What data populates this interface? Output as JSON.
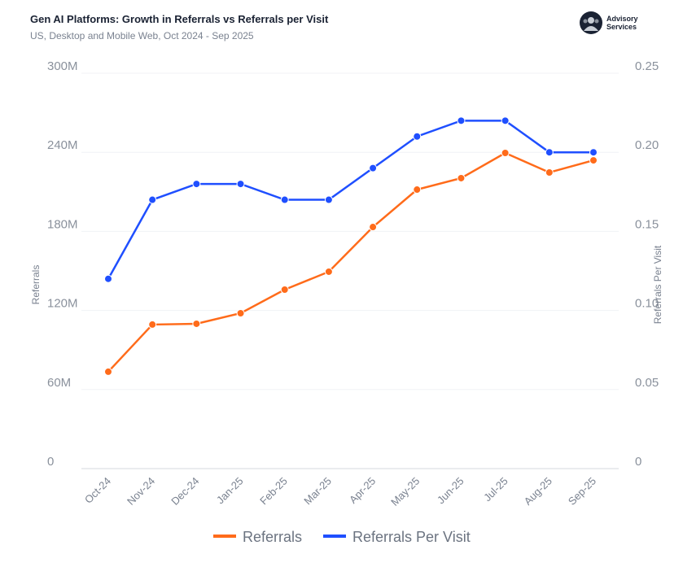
{
  "header": {
    "title": "Gen AI Platforms: Growth in Referrals vs Referrals per Visit",
    "subtitle": "US, Desktop and Mobile Web, Oct 2024 - Sep 2025",
    "logo_text": "Advisory Services"
  },
  "chart_data": {
    "type": "line",
    "title": "Gen AI Platforms: Growth in Referrals vs Referrals per Visit",
    "subtitle": "US, Desktop and Mobile Web, Oct 2024 - Sep 2025",
    "categories": [
      "Oct-24",
      "Nov-24",
      "Dec-24",
      "Jan-25",
      "Feb-25",
      "Mar-25",
      "Apr-25",
      "May-25",
      "Jun-25",
      "Jul-25",
      "Aug-25",
      "Sep-25"
    ],
    "y_left": {
      "label": "Referrals",
      "range": [
        0,
        300000000
      ],
      "ticks": [
        0,
        60000000,
        120000000,
        180000000,
        240000000,
        300000000
      ],
      "tick_labels": [
        "0",
        "60M",
        "120M",
        "180M",
        "240M",
        "300M"
      ]
    },
    "y_right": {
      "label": "Referrals Per Visit",
      "range": [
        0,
        0.25
      ],
      "ticks": [
        0,
        0.05,
        0.1,
        0.15,
        0.2,
        0.25
      ],
      "tick_labels": [
        "0",
        "0.05",
        "0.10",
        "0.15",
        "0.20",
        "0.25"
      ]
    },
    "grid": true,
    "legend_position": "bottom",
    "series": [
      {
        "name": "Referrals",
        "axis": "left",
        "color": "#ff6b1a",
        "values": [
          73500000,
          109300000,
          109900000,
          117900000,
          135800000,
          149400000,
          183300000,
          211700000,
          220400000,
          239500000,
          224700000,
          233900000
        ]
      },
      {
        "name": "Referrals Per Visit",
        "axis": "right",
        "color": "#1f4fff",
        "values": [
          0.12,
          0.17,
          0.18,
          0.18,
          0.17,
          0.17,
          0.19,
          0.21,
          0.22,
          0.22,
          0.2,
          0.2
        ]
      }
    ]
  }
}
